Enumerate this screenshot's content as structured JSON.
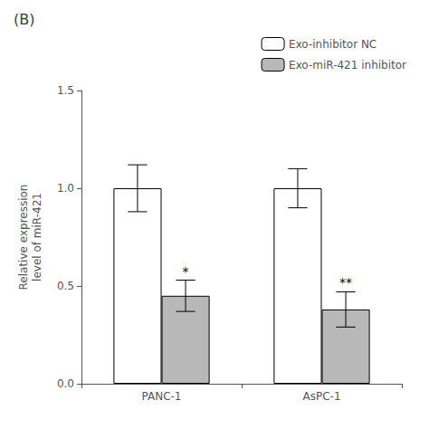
{
  "chart_data": {
    "type": "bar",
    "title": "(B)",
    "ylabel": "Relative expression\nlevel of miR-421",
    "categories": [
      "PANC-1",
      "AsPC-1"
    ],
    "series": [
      {
        "name": "Exo-inhibitor NC",
        "color": "white",
        "values": [
          1.0,
          1.0
        ],
        "errors": [
          0.12,
          0.1
        ]
      },
      {
        "name": "Exo-miR-421 inhibitor",
        "color": "#b8b8b8",
        "values": [
          0.45,
          0.38
        ],
        "errors": [
          0.08,
          0.09
        ],
        "annotations": [
          "*",
          "**"
        ]
      }
    ],
    "ylim": [
      0,
      1.5
    ],
    "yticks": [
      {
        "value": 0,
        "label": "0.0"
      },
      0.5,
      {
        "value": 1,
        "label": "1.0"
      },
      1.5
    ],
    "grid": false,
    "legend": "upper right"
  }
}
